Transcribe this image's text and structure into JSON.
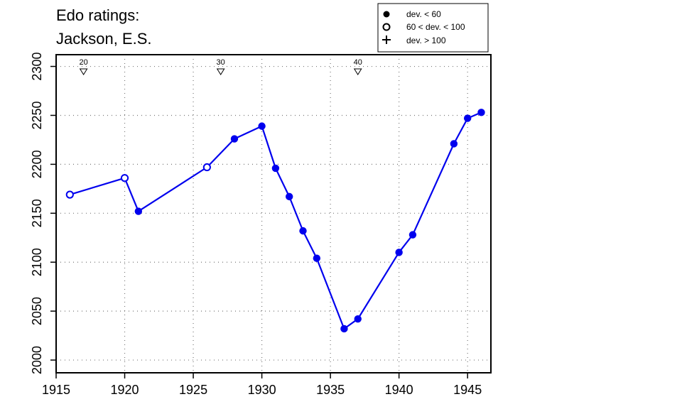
{
  "chart_data": {
    "type": "scatter",
    "title_lines": [
      "Edo ratings:",
      "Jackson, E.S."
    ],
    "xlabel": "",
    "ylabel": "",
    "xlim": [
      1915,
      1946.7
    ],
    "ylim": [
      1987,
      2312
    ],
    "x_ticks": [
      1915,
      1920,
      1925,
      1930,
      1935,
      1940,
      1945
    ],
    "y_ticks": [
      2000,
      2050,
      2100,
      2150,
      2200,
      2250,
      2300
    ],
    "grid": true,
    "legend_position": "top-right",
    "legend": [
      {
        "marker": "filled-circle",
        "label": "dev. < 60"
      },
      {
        "marker": "open-circle",
        "label": "60 < dev. < 100"
      },
      {
        "marker": "plus",
        "label": "dev. > 100"
      }
    ],
    "age_markers": [
      {
        "x": 1917,
        "label": "20"
      },
      {
        "x": 1927,
        "label": "30"
      },
      {
        "x": 1937,
        "label": "40"
      }
    ],
    "series": [
      {
        "color": "#0000ee",
        "points": [
          {
            "x": 1916,
            "y": 2169,
            "dev": "open"
          },
          {
            "x": 1920,
            "y": 2186,
            "dev": "open"
          },
          {
            "x": 1921,
            "y": 2152,
            "dev": "filled"
          },
          {
            "x": 1926,
            "y": 2197,
            "dev": "open"
          },
          {
            "x": 1928,
            "y": 2226,
            "dev": "filled"
          },
          {
            "x": 1930,
            "y": 2239,
            "dev": "filled"
          },
          {
            "x": 1931,
            "y": 2196,
            "dev": "filled"
          },
          {
            "x": 1932,
            "y": 2167,
            "dev": "filled"
          },
          {
            "x": 1933,
            "y": 2132,
            "dev": "filled"
          },
          {
            "x": 1934,
            "y": 2104,
            "dev": "filled"
          },
          {
            "x": 1936,
            "y": 2032,
            "dev": "filled"
          },
          {
            "x": 1937,
            "y": 2042,
            "dev": "filled"
          },
          {
            "x": 1940,
            "y": 2110,
            "dev": "filled"
          },
          {
            "x": 1941,
            "y": 2128,
            "dev": "filled"
          },
          {
            "x": 1944,
            "y": 2221,
            "dev": "filled"
          },
          {
            "x": 1945,
            "y": 2247,
            "dev": "filled"
          },
          {
            "x": 1946,
            "y": 2253,
            "dev": "filled"
          }
        ]
      }
    ]
  }
}
